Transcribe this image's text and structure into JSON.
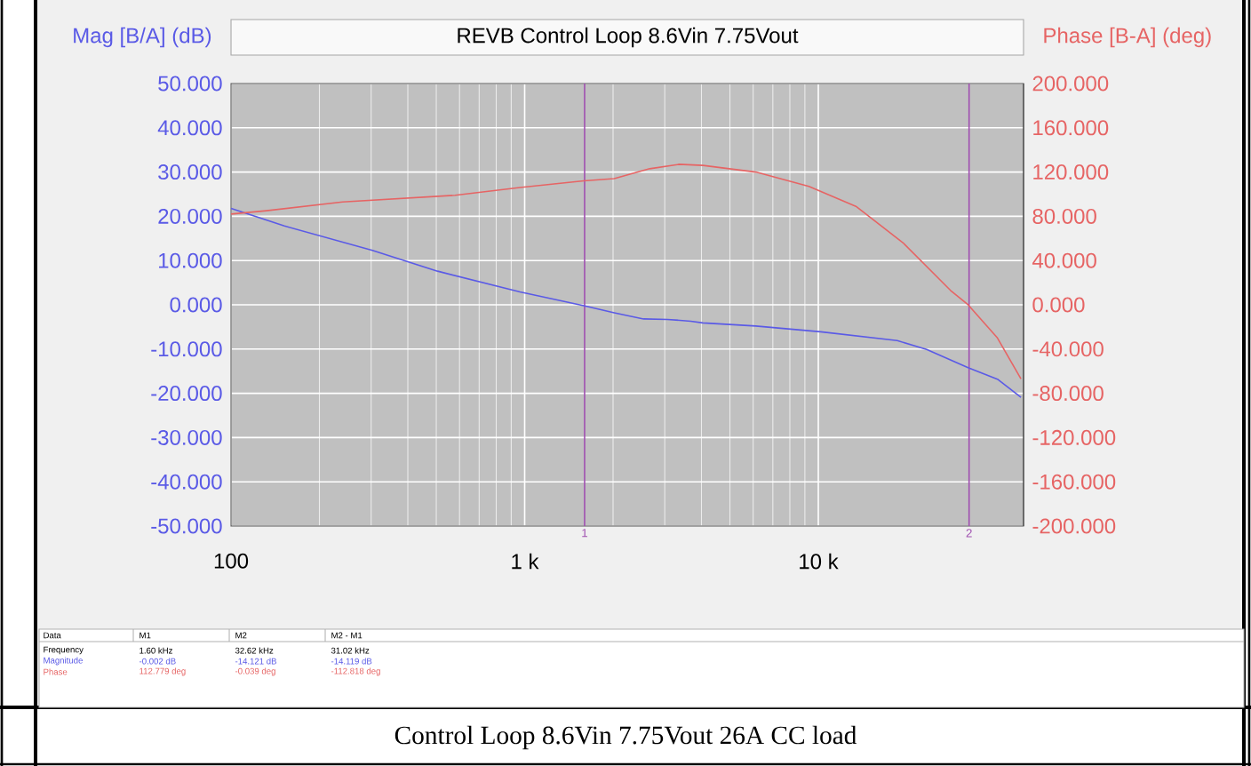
{
  "chart_data": {
    "type": "line",
    "title": "REVB Control Loop 8.6Vin 7.75Vout",
    "ylabel": "Mag [B/A] (dB)",
    "y2label": "Phase [B-A] (deg)",
    "log": "x",
    "grid": true,
    "xlim": [
      100,
      50000
    ],
    "xticks": [
      {
        "value": 100,
        "label": "100"
      },
      {
        "value": 1000,
        "label": "1 k"
      },
      {
        "value": 10000,
        "label": "10 k"
      }
    ],
    "ylim": [
      -50,
      50
    ],
    "yticks": [
      {
        "value": -50,
        "label": "-50.000"
      },
      {
        "value": -40,
        "label": "-40.000"
      },
      {
        "value": -30,
        "label": "-30.000"
      },
      {
        "value": -20,
        "label": "-20.000"
      },
      {
        "value": -10,
        "label": "-10.000"
      },
      {
        "value": 0,
        "label": "0.000"
      },
      {
        "value": 10,
        "label": "10.000"
      },
      {
        "value": 20,
        "label": "20.000"
      },
      {
        "value": 30,
        "label": "30.000"
      },
      {
        "value": 40,
        "label": "40.000"
      },
      {
        "value": 50,
        "label": "50.000"
      }
    ],
    "y2lim": [
      -200,
      200
    ],
    "y2ticks": [
      {
        "value": -200,
        "label": "-200.000"
      },
      {
        "value": -160,
        "label": "-160.000"
      },
      {
        "value": -120,
        "label": "-120.000"
      },
      {
        "value": -80,
        "label": "-80.000"
      },
      {
        "value": -40,
        "label": "-40.000"
      },
      {
        "value": 0,
        "label": "0.000"
      },
      {
        "value": 40,
        "label": "40.000"
      },
      {
        "value": 80,
        "label": "80.000"
      },
      {
        "value": 120,
        "label": "120.000"
      },
      {
        "value": 160,
        "label": "160.000"
      },
      {
        "value": 200,
        "label": "200.000"
      }
    ],
    "series": [
      {
        "color": "#5a5ae6",
        "x": [
          100,
          152,
          303,
          505,
          964,
          1590,
          2018,
          2541,
          3060,
          3680,
          4045,
          6120,
          10190,
          18570,
          23390,
          32370,
          40740,
          49000
        ],
        "values": [
          21.8,
          17.8,
          12.3,
          7.6,
          2.9,
          -0.2,
          -1.8,
          -3.2,
          -3.3,
          -3.7,
          -4.1,
          -4.8,
          -6.1,
          -8.1,
          -10.1,
          -14.2,
          -16.8,
          -20.9
        ]
      },
      {
        "color": "#e66464",
        "axis": "y2",
        "x": [
          100,
          132,
          240,
          579,
          964,
          1590,
          2018,
          2667,
          3360,
          4045,
          6120,
          9290,
          13430,
          19450,
          28200,
          32370,
          40740,
          49000
        ],
        "values": [
          82,
          85,
          93,
          99,
          106,
          112,
          114,
          123,
          127,
          126,
          120,
          107,
          89,
          56,
          13,
          0,
          -30,
          -67
        ]
      }
    ],
    "ref_lines": [
      {
        "axis": "x",
        "value": 1600,
        "color": "#a050b0"
      },
      {
        "axis": "x",
        "value": 32620,
        "color": "#a050b0"
      }
    ],
    "annotations": [
      "Data",
      "M1",
      "M2",
      "M2 - M1",
      "Frequency",
      "1.60 kHz",
      "32.62 kHz",
      "31.02 kHz",
      "Magnitude",
      "-0.002 dB",
      "-14.121 dB",
      "-14.119 dB",
      "Phase",
      "112.779 deg",
      "-0.039 deg",
      "-112.818 deg",
      "Control Loop 8.6Vin 7.75Vout 26A CC load",
      {
        "text": "1",
        "x": 1600,
        "y": -50
      },
      {
        "text": "2",
        "x": 32620,
        "y": -50
      }
    ]
  }
}
